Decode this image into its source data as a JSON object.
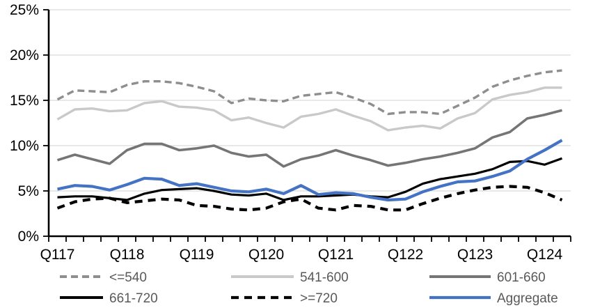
{
  "chart_data": {
    "type": "line",
    "title": "",
    "xlabel": "",
    "ylabel": "",
    "ylim": [
      0,
      25
    ],
    "y_step": 5,
    "y_tick_labels": [
      "0%",
      "5%",
      "10%",
      "15%",
      "20%",
      "25%"
    ],
    "x_tick_labels": [
      "Q117",
      "Q118",
      "Q119",
      "Q120",
      "Q121",
      "Q122",
      "Q123",
      "Q124"
    ],
    "points_per_year": 4,
    "n_points": 30,
    "grid": "horizontal-only",
    "gridline_color": "#d9d9d9",
    "axis_color": "#000000",
    "legend_position": "bottom",
    "legend_text_color": "#595959",
    "series": [
      {
        "name": "<=540",
        "color": "#8e8e8e",
        "dash": "10 6",
        "width": 3.4,
        "values": [
          15.1,
          16.1,
          16.0,
          15.9,
          16.7,
          17.1,
          17.1,
          16.9,
          16.5,
          16.0,
          14.7,
          15.2,
          15.0,
          14.9,
          15.5,
          15.7,
          15.9,
          15.3,
          14.6,
          13.5,
          13.7,
          13.7,
          13.5,
          14.4,
          15.3,
          16.5,
          17.2,
          17.7,
          18.1,
          18.3
        ]
      },
      {
        "name": "541-600",
        "color": "#c9c9c9",
        "dash": null,
        "width": 3.4,
        "values": [
          12.9,
          14.0,
          14.1,
          13.8,
          13.9,
          14.7,
          14.9,
          14.3,
          14.2,
          13.9,
          12.8,
          13.1,
          12.5,
          12.0,
          13.2,
          13.5,
          14.0,
          13.3,
          12.7,
          11.7,
          12.0,
          12.2,
          11.9,
          13.0,
          13.6,
          15.1,
          15.6,
          15.9,
          16.4,
          16.4
        ]
      },
      {
        "name": "601-660",
        "color": "#757575",
        "dash": null,
        "width": 3.6,
        "values": [
          8.4,
          9.0,
          8.5,
          8.0,
          9.5,
          10.2,
          10.2,
          9.5,
          9.7,
          10.0,
          9.2,
          8.8,
          9.0,
          7.7,
          8.5,
          8.9,
          9.5,
          8.9,
          8.4,
          7.8,
          8.1,
          8.5,
          8.8,
          9.2,
          9.7,
          10.9,
          11.5,
          13.0,
          13.4,
          13.9
        ]
      },
      {
        "name": "661-720",
        "color": "#000000",
        "dash": null,
        "width": 3.2,
        "values": [
          4.3,
          4.4,
          4.4,
          4.2,
          4.0,
          4.7,
          5.1,
          5.2,
          5.3,
          5.0,
          4.6,
          4.5,
          4.7,
          4.0,
          4.4,
          4.4,
          4.5,
          4.6,
          4.4,
          4.3,
          4.9,
          5.8,
          6.3,
          6.6,
          6.9,
          7.4,
          8.2,
          8.3,
          7.9,
          8.6
        ]
      },
      {
        "name": ">=720",
        "color": "#000000",
        "dash": "11 8",
        "width": 4.2,
        "values": [
          3.1,
          3.8,
          4.1,
          4.2,
          3.7,
          3.9,
          4.1,
          4.0,
          3.4,
          3.3,
          3.0,
          2.9,
          3.1,
          3.8,
          4.1,
          3.1,
          2.9,
          3.4,
          3.3,
          2.9,
          2.9,
          3.6,
          4.2,
          4.7,
          5.1,
          5.4,
          5.5,
          5.4,
          4.8,
          4.0
        ]
      },
      {
        "name": "Aggregate",
        "color": "#4472c4",
        "dash": null,
        "width": 4.2,
        "values": [
          5.2,
          5.6,
          5.5,
          5.1,
          5.7,
          6.4,
          6.3,
          5.6,
          5.8,
          5.4,
          5.0,
          4.9,
          5.2,
          4.7,
          5.6,
          4.6,
          4.8,
          4.7,
          4.3,
          4.0,
          4.1,
          4.9,
          5.5,
          6.0,
          6.1,
          6.6,
          7.2,
          8.5,
          9.5,
          10.6
        ]
      }
    ]
  }
}
